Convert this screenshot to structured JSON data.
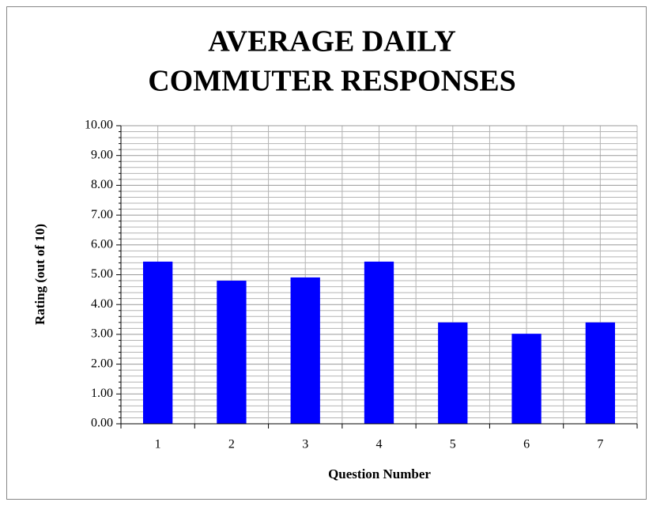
{
  "chart_data": {
    "type": "bar",
    "title": [
      "AVERAGE DAILY",
      "COMMUTER RESPONSES"
    ],
    "x_label": "Question Number",
    "y_label": "Rating (out of 10)",
    "categories": [
      "1",
      "2",
      "3",
      "4",
      "5",
      "6",
      "7"
    ],
    "values": [
      5.44,
      4.8,
      4.91,
      5.44,
      3.4,
      3.02,
      3.4
    ],
    "color": "#0000ff",
    "ylim": [
      0,
      10
    ],
    "yticks": [
      {
        "value": 0,
        "label": "0.00"
      },
      {
        "value": 1,
        "label": "1.00"
      },
      {
        "value": 2,
        "label": "2.00"
      },
      {
        "value": 3,
        "label": "3.00"
      },
      {
        "value": 4,
        "label": "4.00"
      },
      {
        "value": 5,
        "label": "5.00"
      },
      {
        "value": 6,
        "label": "6.00"
      },
      {
        "value": 7,
        "label": "7.00"
      },
      {
        "value": 8,
        "label": "8.00"
      },
      {
        "value": 9,
        "label": "9.00"
      },
      {
        "value": 10,
        "label": "10.00"
      }
    ],
    "yminorticks": [
      0.2,
      0.4,
      0.6,
      0.8,
      1.2,
      1.4,
      1.6,
      1.8,
      2.2,
      2.4,
      2.6,
      2.8,
      3.2,
      3.4,
      3.6,
      3.8,
      4.2,
      4.4,
      4.6,
      4.8,
      5.2,
      5.4,
      5.6,
      5.8,
      6.2,
      6.4,
      6.6,
      6.8,
      7.2,
      7.4,
      7.6,
      7.8,
      8.2,
      8.4,
      8.6,
      8.8,
      9.2,
      9.4,
      9.6,
      9.8
    ],
    "grid": true
  }
}
